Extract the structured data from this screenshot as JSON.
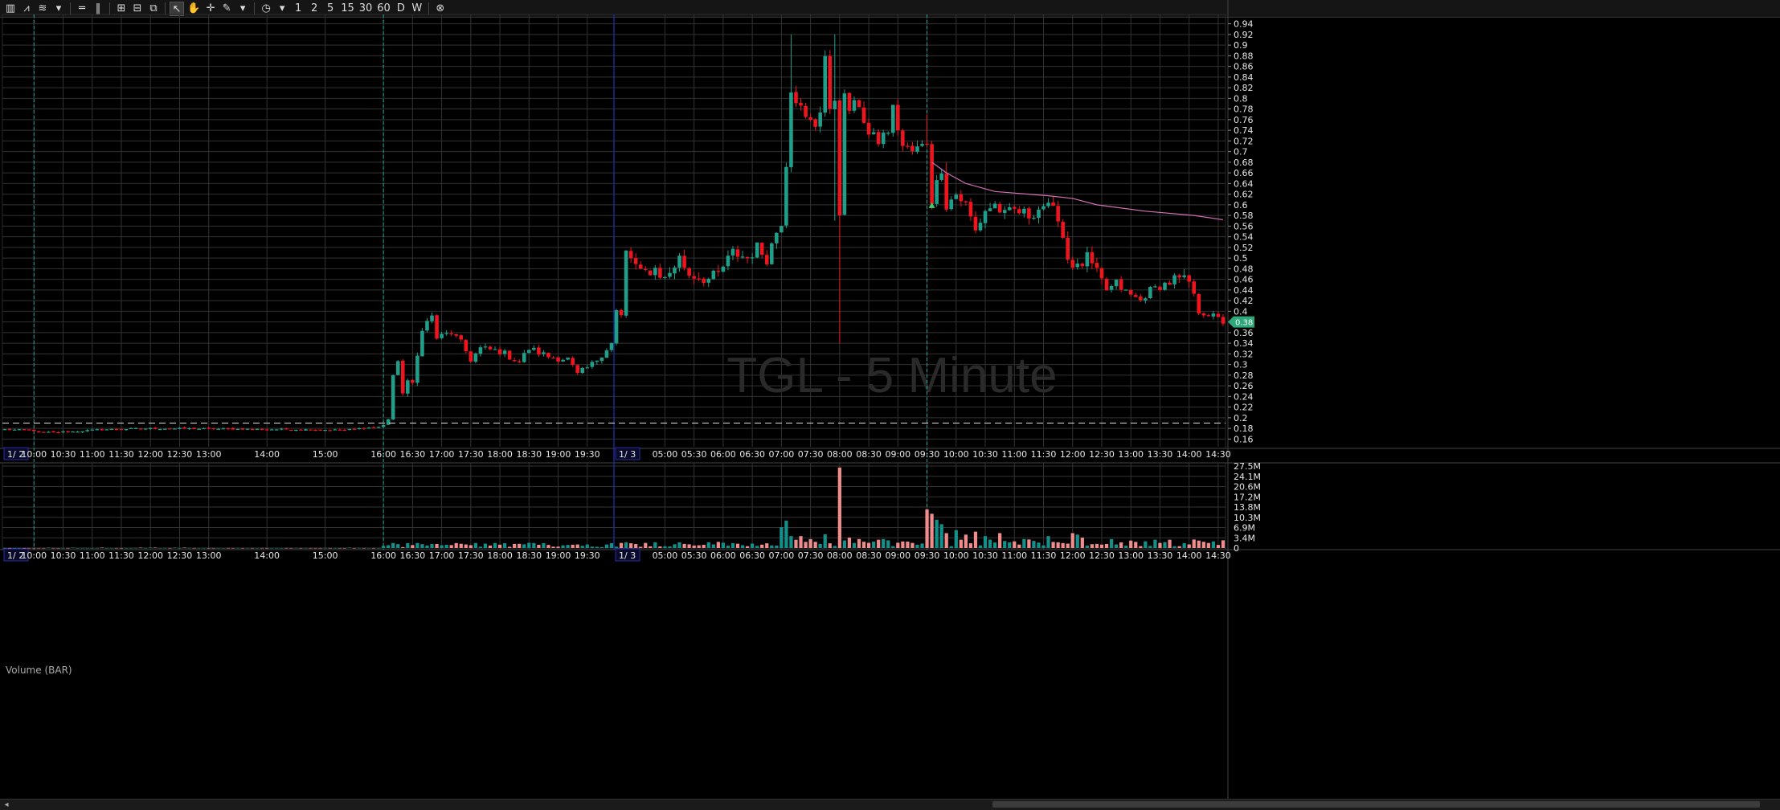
{
  "toolbar": {
    "items": [
      {
        "name": "candle-type-icon",
        "glyph": "▥"
      },
      {
        "name": "line-type-icon",
        "glyph": "⩘"
      },
      {
        "name": "chart-style-icon",
        "glyph": "≋"
      },
      {
        "name": "dropdown-arrow-icon",
        "glyph": "▾"
      },
      {
        "name": "sep"
      },
      {
        "name": "horizontal-lines-icon",
        "glyph": "═"
      },
      {
        "name": "vertical-lines-icon",
        "glyph": "‖"
      },
      {
        "name": "sep"
      },
      {
        "name": "layout-grid-icon",
        "glyph": "⊞"
      },
      {
        "name": "layout-split-icon",
        "glyph": "⊟"
      },
      {
        "name": "layout-config-icon",
        "glyph": "⧉"
      },
      {
        "name": "sep"
      },
      {
        "name": "pointer-icon",
        "glyph": "↖",
        "selected": true
      },
      {
        "name": "hand-icon",
        "glyph": "✋"
      },
      {
        "name": "crosshair-icon",
        "glyph": "✛"
      },
      {
        "name": "draw-pencil-icon",
        "glyph": "✎"
      },
      {
        "name": "dropdown-arrow-icon",
        "glyph": "▾"
      },
      {
        "name": "sep"
      },
      {
        "name": "clock-icon",
        "glyph": "◷"
      },
      {
        "name": "dropdown-arrow-icon",
        "glyph": "▾"
      },
      {
        "name": "interval-1",
        "label": "1"
      },
      {
        "name": "interval-2",
        "label": "2"
      },
      {
        "name": "interval-5",
        "label": "5"
      },
      {
        "name": "interval-15",
        "label": "15"
      },
      {
        "name": "interval-30",
        "label": "30"
      },
      {
        "name": "interval-60",
        "label": "60"
      },
      {
        "name": "interval-d",
        "label": "D"
      },
      {
        "name": "interval-w",
        "label": "W"
      },
      {
        "name": "sep"
      },
      {
        "name": "close-circle-icon",
        "glyph": "⊗"
      }
    ]
  },
  "colors": {
    "up": "#1f9e8a",
    "down": "#f0141e",
    "vol_up": "#14908a",
    "vol_down": "#f08c8c",
    "grid": "#333333",
    "session_marker": "#1fa79a",
    "day_marker": "#1a2e9e",
    "avg_line": "#d46fb8",
    "price_label_bg": "#2ca87a"
  },
  "chart_data": {
    "type": "candlestick",
    "title": "",
    "watermark": "TGL - 5 Minute",
    "ylim": [
      0.15,
      0.95
    ],
    "y_ticks": [
      0.16,
      0.18,
      0.2,
      0.22,
      0.24,
      0.26,
      0.28,
      0.3,
      0.32,
      0.34,
      0.36,
      0.38,
      0.4,
      0.42,
      0.44,
      0.46,
      0.48,
      0.5,
      0.52,
      0.54,
      0.56,
      0.58,
      0.6,
      0.62,
      0.64,
      0.66,
      0.68,
      0.7,
      0.72,
      0.74,
      0.76,
      0.78,
      0.8,
      0.82,
      0.84,
      0.86,
      0.88,
      0.9,
      0.92,
      0.94
    ],
    "y_tick_labels": [
      "0.16",
      "0.18",
      "0.2",
      "0.22",
      "0.24",
      "0.26",
      "0.28",
      "0.3",
      "0.32",
      "0.34",
      "0.36",
      "0.38",
      "0.4",
      "0.42",
      "0.44",
      "0.46",
      "0.48",
      "0.5",
      "0.52",
      "0.54",
      "0.56",
      "0.58",
      "0.6",
      "0.62",
      "0.64",
      "0.66",
      "0.68",
      "0.7",
      "0.72",
      "0.74",
      "0.76",
      "0.78",
      "0.8",
      "0.82",
      "0.84",
      "0.86",
      "0.88",
      "0.9",
      "0.92",
      "0.94"
    ],
    "x_ticks": [
      {
        "label": "1/ 2",
        "bar": 0,
        "date": true
      },
      {
        "label": "10:00",
        "bar": 6
      },
      {
        "label": "10:30",
        "bar": 12
      },
      {
        "label": "11:00",
        "bar": 18
      },
      {
        "label": "11:30",
        "bar": 24
      },
      {
        "label": "12:00",
        "bar": 30
      },
      {
        "label": "12:30",
        "bar": 36
      },
      {
        "label": "13:00",
        "bar": 42
      },
      {
        "label": "14:00",
        "bar": 54
      },
      {
        "label": "15:00",
        "bar": 66
      },
      {
        "label": "16:00",
        "bar": 78
      },
      {
        "label": "16:30",
        "bar": 84
      },
      {
        "label": "17:00",
        "bar": 90
      },
      {
        "label": "17:30",
        "bar": 96
      },
      {
        "label": "18:00",
        "bar": 102
      },
      {
        "label": "18:30",
        "bar": 108
      },
      {
        "label": "19:00",
        "bar": 114
      },
      {
        "label": "19:30",
        "bar": 120
      },
      {
        "label": "1/ 3",
        "bar": 126,
        "date": true
      },
      {
        "label": "05:00",
        "bar": 136
      },
      {
        "label": "05:30",
        "bar": 142
      },
      {
        "label": "06:00",
        "bar": 148
      },
      {
        "label": "06:30",
        "bar": 154
      },
      {
        "label": "07:00",
        "bar": 160
      },
      {
        "label": "07:30",
        "bar": 166
      },
      {
        "label": "08:00",
        "bar": 172
      },
      {
        "label": "08:30",
        "bar": 178
      },
      {
        "label": "09:00",
        "bar": 184
      },
      {
        "label": "09:30",
        "bar": 190
      },
      {
        "label": "10:00",
        "bar": 196
      },
      {
        "label": "10:30",
        "bar": 202
      },
      {
        "label": "11:00",
        "bar": 208
      },
      {
        "label": "11:30",
        "bar": 214
      },
      {
        "label": "12:00",
        "bar": 220
      },
      {
        "label": "12:30",
        "bar": 226
      },
      {
        "label": "13:00",
        "bar": 232
      },
      {
        "label": "13:30",
        "bar": 238
      },
      {
        "label": "14:00",
        "bar": 244
      },
      {
        "label": "14:30",
        "bar": 250
      }
    ],
    "session_markers": [
      6,
      78,
      190
    ],
    "day_marker": 126,
    "reference_line": 0.19,
    "last_price": "0.38",
    "signal_marker": {
      "bar": 191,
      "price": 0.6
    },
    "anchors": [
      [
        0,
        0.178
      ],
      [
        6,
        0.176
      ],
      [
        7,
        0.172
      ],
      [
        14,
        0.174
      ],
      [
        20,
        0.178
      ],
      [
        30,
        0.18
      ],
      [
        45,
        0.179
      ],
      [
        60,
        0.178
      ],
      [
        70,
        0.177
      ],
      [
        77,
        0.183
      ],
      [
        78,
        0.186
      ],
      [
        79,
        0.2
      ],
      [
        80,
        0.28
      ],
      [
        81,
        0.3
      ],
      [
        82,
        0.25
      ],
      [
        83,
        0.27
      ],
      [
        84,
        0.26
      ],
      [
        86,
        0.37
      ],
      [
        88,
        0.39
      ],
      [
        89,
        0.35
      ],
      [
        92,
        0.36
      ],
      [
        94,
        0.34
      ],
      [
        96,
        0.31
      ],
      [
        98,
        0.33
      ],
      [
        102,
        0.325
      ],
      [
        106,
        0.305
      ],
      [
        108,
        0.33
      ],
      [
        112,
        0.315
      ],
      [
        116,
        0.31
      ],
      [
        118,
        0.28
      ],
      [
        121,
        0.3
      ],
      [
        124,
        0.33
      ],
      [
        125,
        0.34
      ],
      [
        126,
        0.4
      ],
      [
        127,
        0.39
      ],
      [
        128,
        0.51
      ],
      [
        129,
        0.5
      ],
      [
        131,
        0.47
      ],
      [
        134,
        0.48
      ],
      [
        136,
        0.46
      ],
      [
        139,
        0.5
      ],
      [
        141,
        0.47
      ],
      [
        145,
        0.46
      ],
      [
        147,
        0.47
      ],
      [
        150,
        0.51
      ],
      [
        153,
        0.5
      ],
      [
        155,
        0.52
      ],
      [
        157,
        0.5
      ],
      [
        159,
        0.55
      ],
      [
        160,
        0.57
      ],
      [
        161,
        0.68
      ],
      [
        162,
        0.82
      ],
      [
        163,
        0.8
      ],
      [
        165,
        0.76
      ],
      [
        167,
        0.75
      ],
      [
        168,
        0.78
      ],
      [
        169,
        0.88
      ],
      [
        170,
        0.77
      ],
      [
        171,
        0.8
      ],
      [
        172,
        0.59
      ],
      [
        173,
        0.8
      ],
      [
        174,
        0.78
      ],
      [
        176,
        0.79
      ],
      [
        178,
        0.73
      ],
      [
        180,
        0.72
      ],
      [
        182,
        0.74
      ],
      [
        183,
        0.78
      ],
      [
        185,
        0.71
      ],
      [
        187,
        0.7
      ],
      [
        189,
        0.71
      ],
      [
        190,
        0.72
      ],
      [
        191,
        0.61
      ],
      [
        192,
        0.64
      ],
      [
        193,
        0.67
      ],
      [
        194,
        0.6
      ],
      [
        196,
        0.62
      ],
      [
        198,
        0.6
      ],
      [
        200,
        0.55
      ],
      [
        202,
        0.59
      ],
      [
        204,
        0.6
      ],
      [
        206,
        0.58
      ],
      [
        208,
        0.59
      ],
      [
        211,
        0.58
      ],
      [
        214,
        0.6
      ],
      [
        217,
        0.58
      ],
      [
        219,
        0.5
      ],
      [
        221,
        0.48
      ],
      [
        223,
        0.5
      ],
      [
        225,
        0.47
      ],
      [
        227,
        0.44
      ],
      [
        229,
        0.45
      ],
      [
        232,
        0.43
      ],
      [
        234,
        0.42
      ],
      [
        236,
        0.44
      ],
      [
        239,
        0.45
      ],
      [
        241,
        0.46
      ],
      [
        244,
        0.455
      ],
      [
        246,
        0.4
      ],
      [
        248,
        0.395
      ],
      [
        251,
        0.38
      ]
    ],
    "special_wicks": [
      {
        "bar": 162,
        "high": 0.92
      },
      {
        "bar": 169,
        "high": 0.89
      },
      {
        "bar": 171,
        "high": 0.92,
        "low": 0.57
      },
      {
        "bar": 172,
        "low": 0.34
      },
      {
        "bar": 190,
        "high": 0.77
      },
      {
        "bar": 194,
        "high": 0.68
      }
    ],
    "volume": {
      "label": "Volume (BAR)",
      "ylim": [
        0,
        27.5
      ],
      "y_tick_labels": [
        "27.5M",
        "24.1M",
        "20.6M",
        "17.2M",
        "13.8M",
        "10.3M",
        "6.9M",
        "3.4M",
        "0"
      ],
      "spikes": [
        {
          "bar": 160,
          "v": 7.0
        },
        {
          "bar": 161,
          "v": 9.2
        },
        {
          "bar": 162,
          "v": 4.0
        },
        {
          "bar": 164,
          "v": 4.0
        },
        {
          "bar": 166,
          "v": 3.0
        },
        {
          "bar": 169,
          "v": 4.6
        },
        {
          "bar": 172,
          "v": 27.0
        },
        {
          "bar": 174,
          "v": 3.5
        },
        {
          "bar": 176,
          "v": 3.0
        },
        {
          "bar": 181,
          "v": 3.0
        },
        {
          "bar": 190,
          "v": 13.0
        },
        {
          "bar": 191,
          "v": 11.5
        },
        {
          "bar": 192,
          "v": 9.5
        },
        {
          "bar": 193,
          "v": 8.0
        },
        {
          "bar": 194,
          "v": 5.0
        },
        {
          "bar": 196,
          "v": 6.0
        },
        {
          "bar": 198,
          "v": 4.5
        },
        {
          "bar": 200,
          "v": 5.5
        },
        {
          "bar": 202,
          "v": 4.0
        },
        {
          "bar": 205,
          "v": 5.0
        },
        {
          "bar": 210,
          "v": 3.0
        },
        {
          "bar": 215,
          "v": 4.0
        },
        {
          "bar": 220,
          "v": 5.0
        },
        {
          "bar": 221,
          "v": 4.5
        },
        {
          "bar": 222,
          "v": 3.5
        },
        {
          "bar": 228,
          "v": 3.0
        },
        {
          "bar": 232,
          "v": 2.5
        },
        {
          "bar": 246,
          "v": 2.5
        }
      ]
    },
    "moving_average": {
      "from_bar": 191,
      "points": [
        [
          191,
          0.68
        ],
        [
          194,
          0.66
        ],
        [
          198,
          0.64
        ],
        [
          204,
          0.625
        ],
        [
          215,
          0.617
        ],
        [
          220,
          0.612
        ],
        [
          225,
          0.6
        ],
        [
          235,
          0.588
        ],
        [
          245,
          0.58
        ],
        [
          251,
          0.572
        ]
      ]
    }
  }
}
